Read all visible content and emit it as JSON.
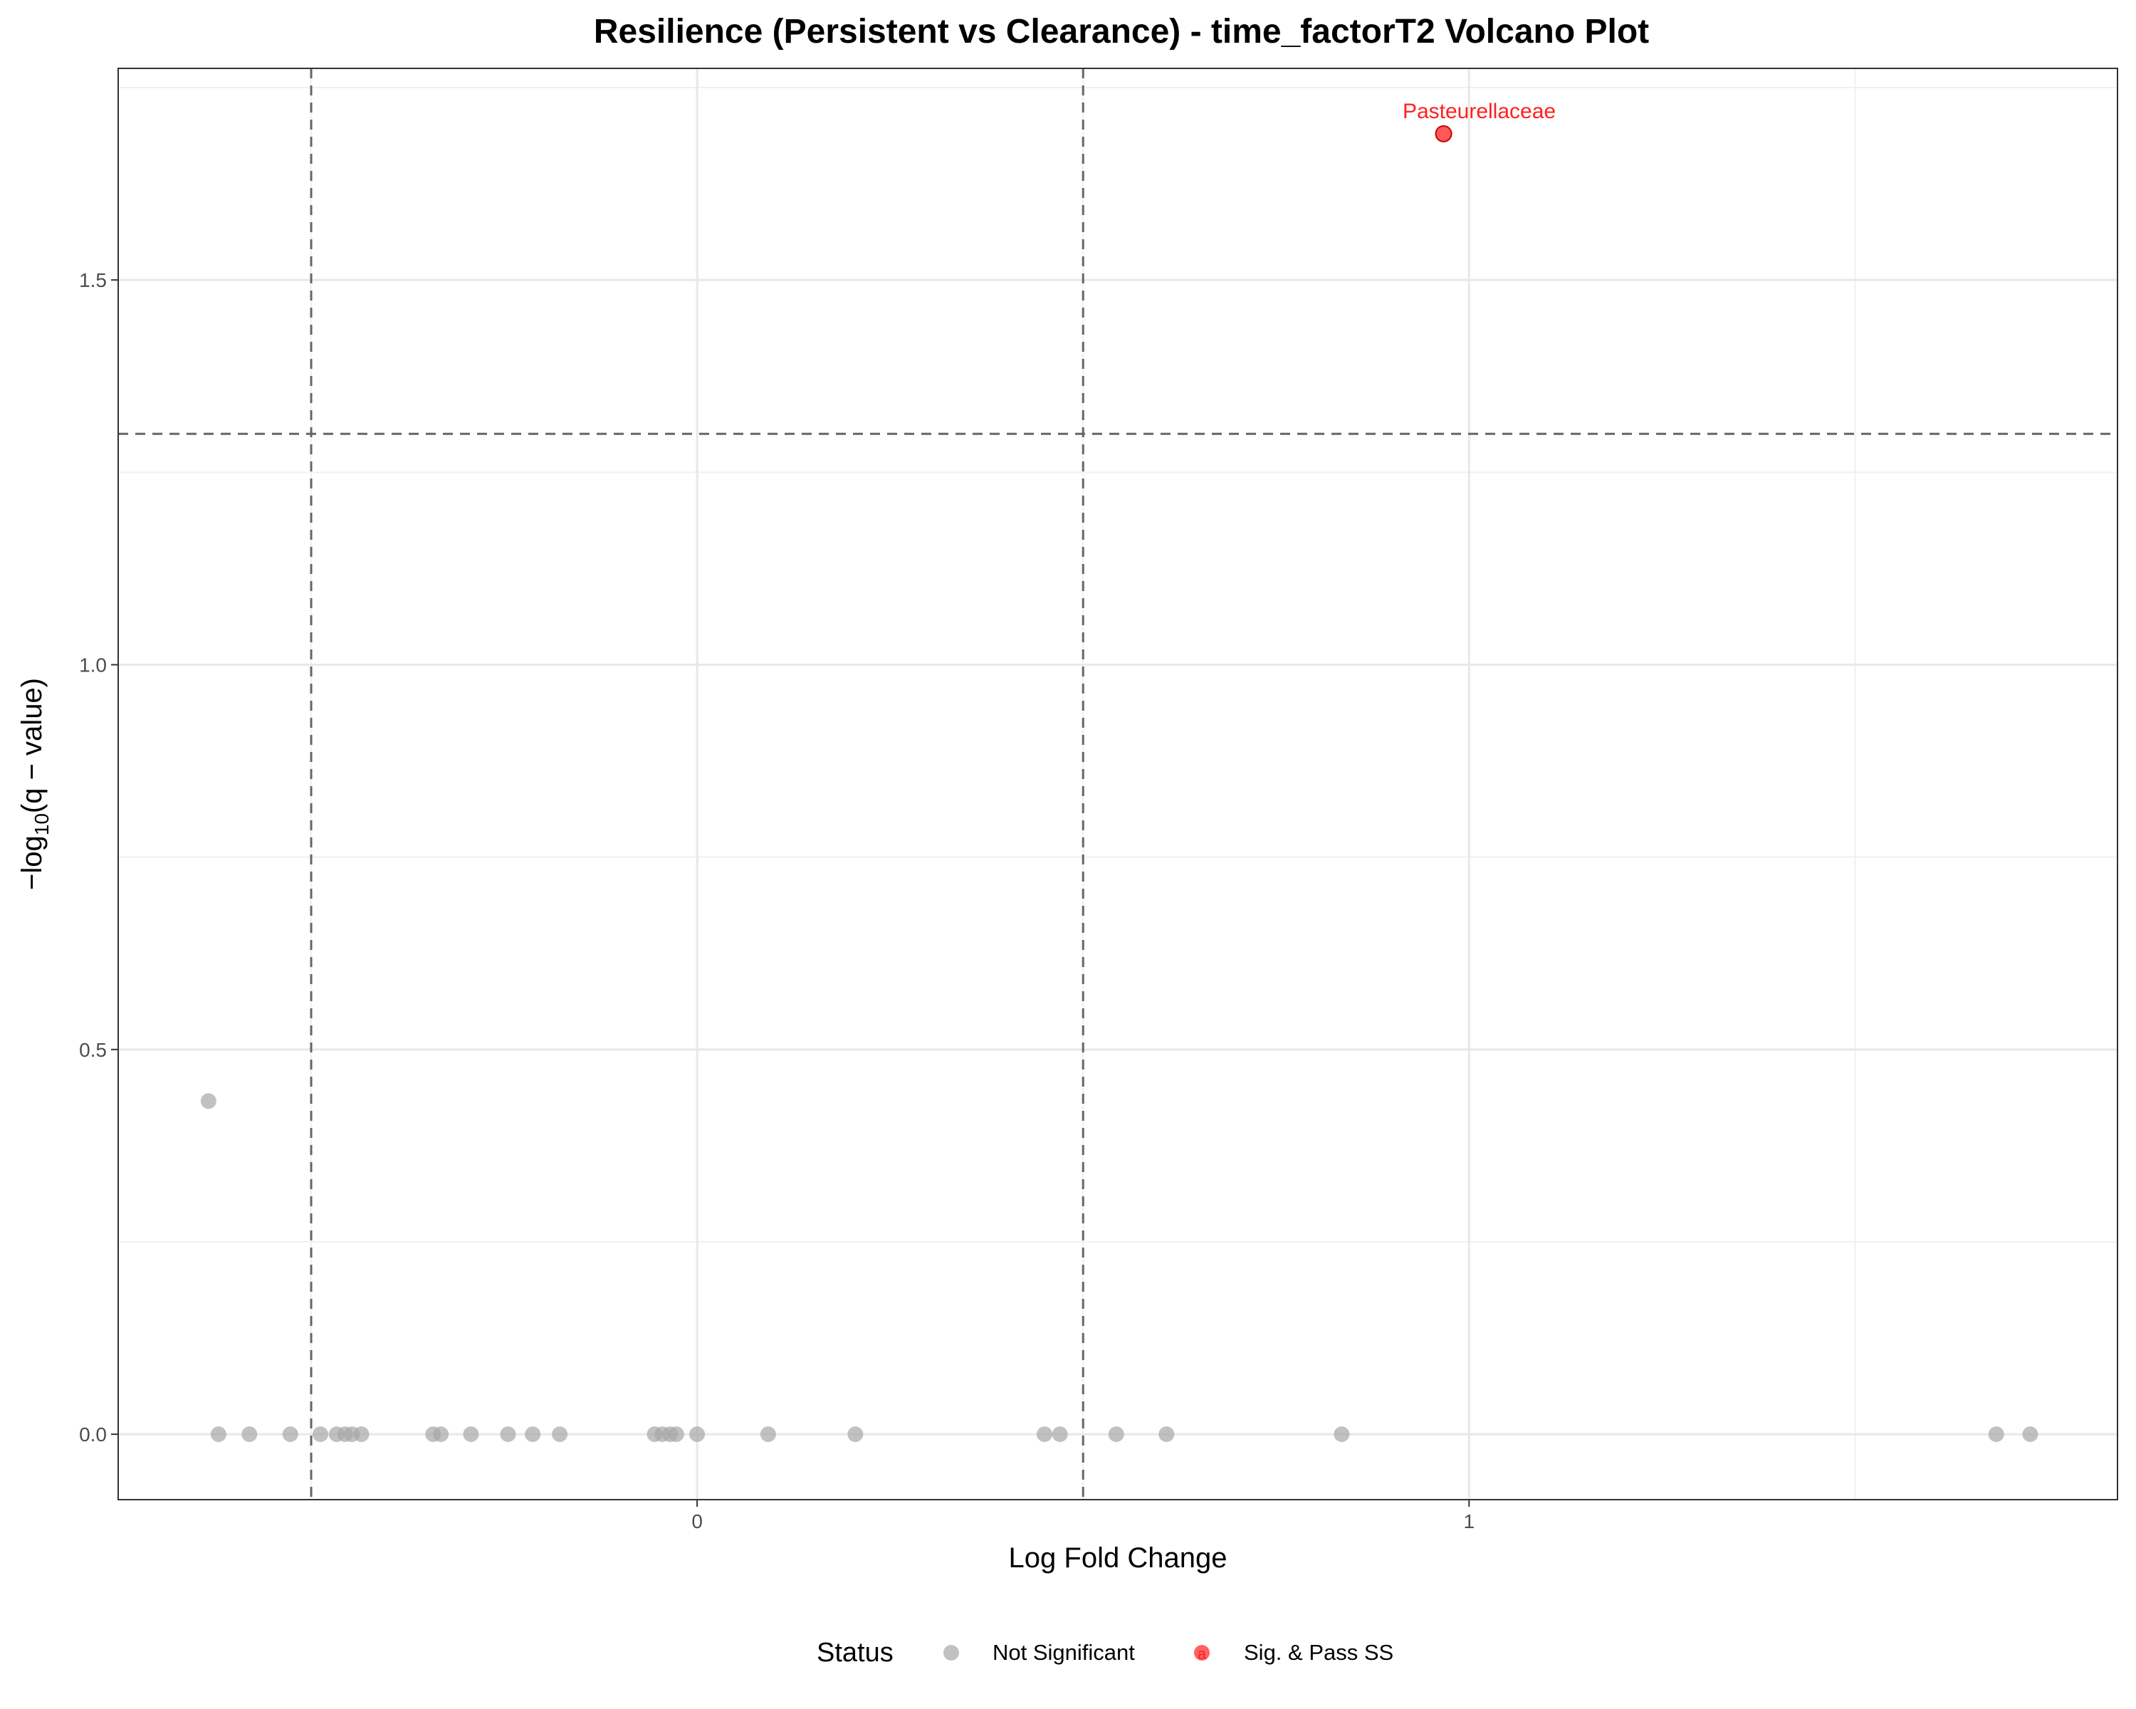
{
  "chart_data": {
    "type": "scatter",
    "title": "Resilience (Persistent vs Clearance) - time_factorT2 Volcano Plot",
    "xlabel": "Log Fold Change",
    "ylabel_main": "−log",
    "ylabel_sub": "10",
    "ylabel_rest": "(q − value)",
    "xlim": [
      -0.75,
      1.84
    ],
    "ylim": [
      -0.085,
      1.775
    ],
    "xticks": [
      0,
      1
    ],
    "xtick_labels": [
      "0",
      "1"
    ],
    "yticks": [
      0.0,
      0.5,
      1.0,
      1.5
    ],
    "ytick_labels": [
      "0.0",
      "0.5",
      "1.0",
      "1.5"
    ],
    "x_minor_gridlines": [
      -0.5,
      0.5,
      1.5
    ],
    "y_minor_gridlines": [
      0.25,
      0.75,
      1.25,
      1.75
    ],
    "vlines": [
      -0.5,
      0.5
    ],
    "hline": 1.3,
    "grid": true,
    "legend": {
      "position": "bottom",
      "title": "Status",
      "entries": [
        {
          "label": "Not Significant",
          "color": "#a6a6a6"
        },
        {
          "label": "Sig. & Pass SS",
          "color": "#ff2020"
        }
      ]
    },
    "series": [
      {
        "name": "Not Significant",
        "color": "#a6a6a6",
        "points": [
          {
            "x": -0.633,
            "y": 0.433
          },
          {
            "x": -0.62,
            "y": 0.0
          },
          {
            "x": -0.58,
            "y": 0.0
          },
          {
            "x": -0.527,
            "y": 0.0
          },
          {
            "x": -0.488,
            "y": 0.0
          },
          {
            "x": -0.467,
            "y": 0.0
          },
          {
            "x": -0.456,
            "y": 0.0
          },
          {
            "x": -0.447,
            "y": 0.0
          },
          {
            "x": -0.435,
            "y": 0.0
          },
          {
            "x": -0.342,
            "y": 0.0
          },
          {
            "x": -0.332,
            "y": 0.0
          },
          {
            "x": -0.293,
            "y": 0.0
          },
          {
            "x": -0.245,
            "y": 0.0
          },
          {
            "x": -0.213,
            "y": 0.0
          },
          {
            "x": -0.178,
            "y": 0.0
          },
          {
            "x": -0.055,
            "y": 0.0
          },
          {
            "x": -0.045,
            "y": 0.0
          },
          {
            "x": -0.035,
            "y": 0.0
          },
          {
            "x": -0.027,
            "y": 0.0
          },
          {
            "x": 0.0,
            "y": 0.0
          },
          {
            "x": 0.092,
            "y": 0.0
          },
          {
            "x": 0.205,
            "y": 0.0
          },
          {
            "x": 0.45,
            "y": 0.0
          },
          {
            "x": 0.47,
            "y": 0.0
          },
          {
            "x": 0.543,
            "y": 0.0
          },
          {
            "x": 0.608,
            "y": 0.0
          },
          {
            "x": 0.835,
            "y": 0.0
          },
          {
            "x": 1.683,
            "y": 0.0
          },
          {
            "x": 1.727,
            "y": 0.0
          }
        ]
      },
      {
        "name": "Sig. & Pass SS",
        "color": "#ff2020",
        "points": [
          {
            "x": 0.967,
            "y": 1.69,
            "label": "Pasteurellaceae"
          }
        ]
      }
    ]
  }
}
